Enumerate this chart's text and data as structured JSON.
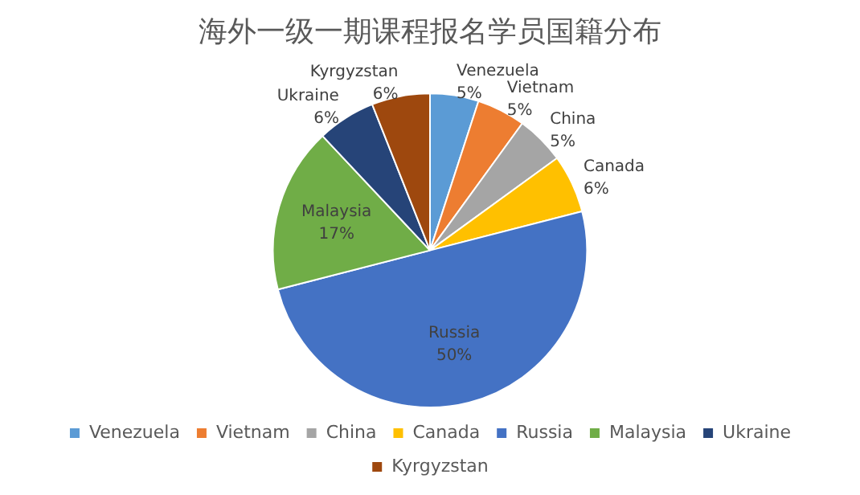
{
  "chart_data": {
    "type": "pie",
    "title": "海外一级一期课程报名学员国籍分布",
    "categories": [
      "Venezuela",
      "Vietnam",
      "China",
      "Canada",
      "Russia",
      "Malaysia",
      "Ukraine",
      "Kyrgyzstan"
    ],
    "values": [
      5,
      5,
      5,
      6,
      50,
      17,
      6,
      6
    ],
    "value_labels": [
      "5%",
      "5%",
      "5%",
      "6%",
      "50%",
      "17%",
      "6%",
      "6%"
    ],
    "colors": [
      "#5b9bd5",
      "#ed7d31",
      "#a5a5a5",
      "#ffc000",
      "#4472c4",
      "#70ad47",
      "#264478",
      "#9e480e"
    ],
    "legend": "bottom"
  }
}
